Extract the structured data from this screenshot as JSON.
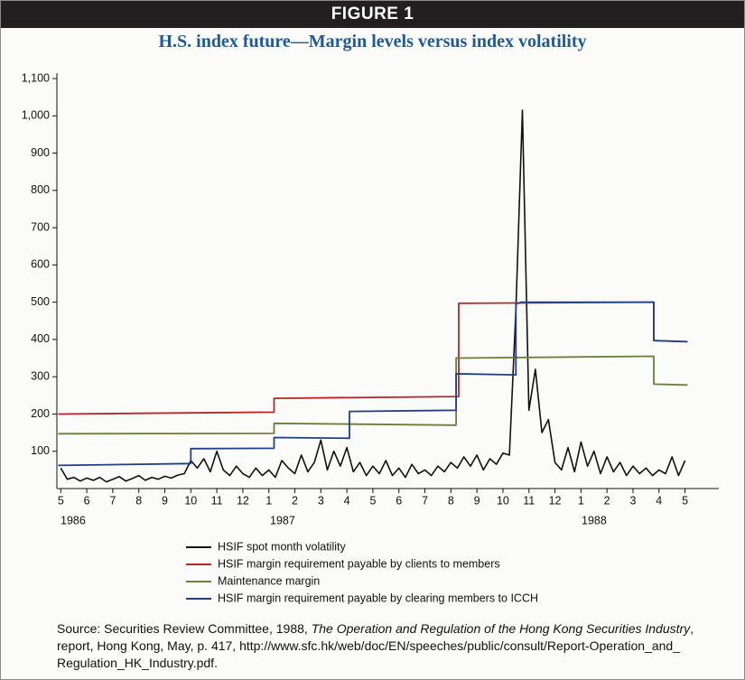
{
  "header": "FIGURE 1",
  "chart_data": {
    "type": "line",
    "title": "H.S. index future—Margin levels versus index volatility",
    "xlim": [
      -0.15,
      25.3
    ],
    "xticks": [
      {
        "value": 0,
        "label": "5"
      },
      {
        "value": 1,
        "label": "6"
      },
      {
        "value": 2,
        "label": "7"
      },
      {
        "value": 3,
        "label": "8"
      },
      {
        "value": 4,
        "label": "9"
      },
      {
        "value": 5,
        "label": "10"
      },
      {
        "value": 6,
        "label": "11"
      },
      {
        "value": 7,
        "label": "12"
      },
      {
        "value": 8,
        "label": "1"
      },
      {
        "value": 9,
        "label": "2"
      },
      {
        "value": 10,
        "label": "3"
      },
      {
        "value": 11,
        "label": "4"
      },
      {
        "value": 12,
        "label": "5"
      },
      {
        "value": 13,
        "label": "6"
      },
      {
        "value": 14,
        "label": "7"
      },
      {
        "value": 15,
        "label": "8"
      },
      {
        "value": 16,
        "label": "9"
      },
      {
        "value": 17,
        "label": "10"
      },
      {
        "value": 18,
        "label": "11"
      },
      {
        "value": 19,
        "label": "12"
      },
      {
        "value": 20,
        "label": "1"
      },
      {
        "value": 21,
        "label": "2"
      },
      {
        "value": 22,
        "label": "3"
      },
      {
        "value": 23,
        "label": "4"
      },
      {
        "value": 24,
        "label": "5"
      }
    ],
    "year_labels": [
      "1986",
      "1987",
      "1988"
    ],
    "ylim": [
      0,
      1100
    ],
    "yticks": [
      100,
      200,
      300,
      400,
      500,
      600,
      700,
      800,
      900,
      {
        "value": 1000,
        "label": "1,000"
      },
      {
        "value": 1100,
        "label": "1,100"
      }
    ],
    "series": [
      {
        "name": "HSIF spot month volatility",
        "color": "#111111",
        "x": [
          0,
          0.25,
          0.5,
          0.75,
          1,
          1.25,
          1.5,
          1.75,
          2,
          2.25,
          2.5,
          2.75,
          3,
          3.25,
          3.5,
          3.75,
          4,
          4.25,
          4.5,
          4.75,
          5,
          5.25,
          5.5,
          5.75,
          6,
          6.25,
          6.5,
          6.75,
          7,
          7.25,
          7.5,
          7.75,
          8,
          8.25,
          8.5,
          8.75,
          9,
          9.25,
          9.5,
          9.75,
          10,
          10.25,
          10.5,
          10.75,
          11,
          11.25,
          11.5,
          11.75,
          12,
          12.25,
          12.5,
          12.75,
          13,
          13.25,
          13.5,
          13.75,
          14,
          14.25,
          14.5,
          14.75,
          15,
          15.25,
          15.5,
          15.75,
          16,
          16.25,
          16.5,
          16.75,
          17,
          17.25,
          17.5,
          17.75,
          18,
          18.25,
          18.5,
          18.75,
          19,
          19.25,
          19.5,
          19.75,
          20,
          20.25,
          20.5,
          20.75,
          21,
          21.25,
          21.5,
          21.75,
          22,
          22.25,
          22.5,
          22.75,
          23,
          23.25,
          23.5,
          23.75,
          24
        ],
        "values": [
          55,
          25,
          30,
          20,
          28,
          22,
          30,
          18,
          25,
          32,
          20,
          27,
          35,
          22,
          30,
          25,
          33,
          28,
          36,
          40,
          75,
          55,
          80,
          45,
          100,
          50,
          35,
          60,
          40,
          30,
          55,
          35,
          50,
          30,
          75,
          55,
          40,
          90,
          45,
          70,
          130,
          50,
          100,
          60,
          110,
          45,
          70,
          35,
          60,
          40,
          75,
          35,
          55,
          30,
          65,
          40,
          50,
          35,
          60,
          45,
          70,
          55,
          85,
          60,
          90,
          50,
          80,
          65,
          95,
          90,
          480,
          1015,
          210,
          320,
          150,
          185,
          70,
          50,
          110,
          45,
          125,
          60,
          100,
          40,
          85,
          45,
          70,
          35,
          60,
          40,
          55,
          35,
          50,
          40,
          85,
          35,
          75
        ]
      },
      {
        "name": "HSIF margin requirement payable by clients to members",
        "color": "#b5262b",
        "x": [
          -0.1,
          8.2,
          8.2,
          15.3,
          15.3,
          22.8,
          22.8,
          24.1
        ],
        "values": [
          200,
          205,
          242,
          247,
          497,
          500,
          397,
          394
        ]
      },
      {
        "name": "Maintenance margin",
        "color": "#6b7f3a",
        "x": [
          -0.1,
          8.2,
          8.2,
          15.2,
          15.2,
          22.8,
          22.8,
          24.1
        ],
        "values": [
          147,
          148,
          175,
          170,
          350,
          355,
          280,
          278
        ]
      },
      {
        "name": "HSIF margin requirement payable by clearing members to ICCH",
        "color": "#1f3f86",
        "x": [
          -0.1,
          5.0,
          5.0,
          8.2,
          8.2,
          11.1,
          11.1,
          15.2,
          15.2,
          17.5,
          17.5,
          17.7,
          22.8,
          22.8,
          24.1
        ],
        "values": [
          62,
          67,
          107,
          108,
          137,
          135,
          207,
          210,
          308,
          305,
          495,
          500,
          500,
          397,
          394
        ]
      }
    ]
  },
  "source": {
    "prefix": "Source: Securities Review Committee, 1988, ",
    "title": "The Operation and Regulation of the Hong Kong Securities Industry",
    "suffix": ", report, Hong Kong, May, p. 417, http://www.sfc.hk/web/doc/EN/speeches/public/consult/Report-Operation_and_ Regulation_HK_Industry.pdf."
  }
}
